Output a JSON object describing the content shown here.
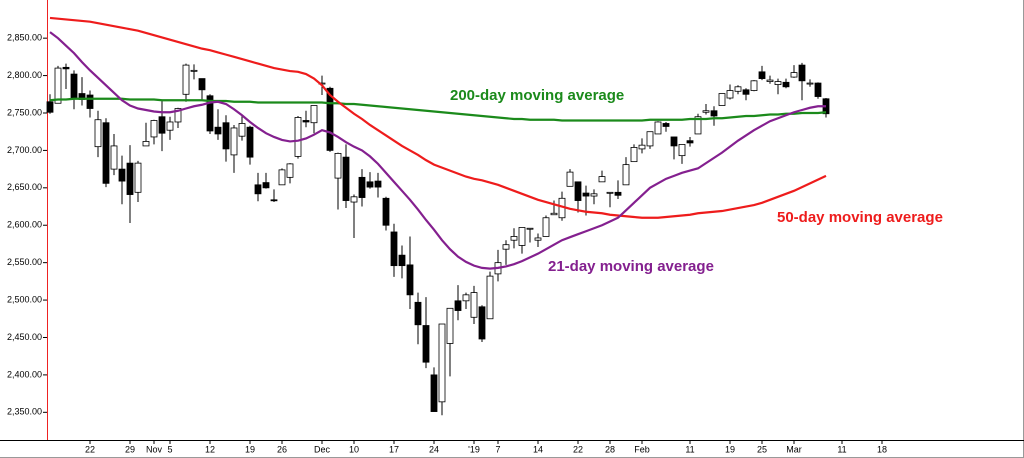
{
  "chart_data": {
    "type": "candlestick",
    "categories": [
      null,
      null,
      null,
      null,
      null,
      "22",
      null,
      null,
      null,
      null,
      "29",
      null,
      null,
      "Nov",
      null,
      "5",
      null,
      null,
      null,
      null,
      "12",
      null,
      null,
      null,
      null,
      "19",
      null,
      null,
      null,
      "26",
      null,
      null,
      null,
      null,
      "Dec",
      null,
      null,
      null,
      "10",
      null,
      null,
      null,
      null,
      "17",
      null,
      null,
      null,
      null,
      "24",
      null,
      null,
      null,
      null,
      "'19",
      null,
      null,
      "7",
      null,
      null,
      null,
      null,
      "14",
      null,
      null,
      null,
      null,
      "22",
      null,
      null,
      null,
      "28",
      null,
      null,
      null,
      "Feb",
      null,
      null,
      null,
      null,
      null,
      "11",
      null,
      null,
      null,
      null,
      "19",
      null,
      null,
      null,
      "25",
      null,
      null,
      null,
      "Mar",
      null,
      null,
      null,
      null,
      null,
      "11",
      null,
      null,
      null,
      null,
      "18"
    ],
    "ohlc": {
      "open": [
        2765,
        2763,
        2811,
        2802,
        2776,
        2774,
        2705,
        2737,
        2675,
        2675,
        2683,
        2644,
        2706,
        2718,
        2745,
        2727,
        2738,
        2775,
        2807,
        2796,
        2773,
        2731,
        2737,
        2694,
        2719,
        2731,
        2654,
        2657,
        2634,
        2654,
        2664,
        2692,
        2740,
        2737,
        2790,
        2783,
        2663,
        2691,
        2631,
        2664,
        2658,
        2659,
        2636,
        2591,
        2560,
        2547,
        2497,
        2466,
        2400,
        2364,
        2442,
        2499,
        2499,
        2477,
        2491,
        2475,
        2535,
        2568,
        2580,
        2573,
        2595,
        2580,
        2585,
        2614,
        2610,
        2652,
        2658,
        2643,
        2639,
        2658,
        2644,
        2644,
        2654,
        2685,
        2702,
        2706,
        2722,
        2736,
        2718,
        2693,
        2713,
        2722,
        2751,
        2753,
        2760,
        2770,
        2779,
        2781,
        2780,
        2805,
        2792,
        2788,
        2791,
        2798,
        2814,
        2790,
        2790,
        2769,
        null,
        null,
        null,
        null,
        null,
        null,
        null
      ],
      "high": [
        2775,
        2813,
        2816,
        2807,
        2798,
        2780,
        2753,
        2743,
        2722,
        2693,
        2707,
        2686,
        2737,
        2741,
        2767,
        2745,
        2757,
        2816,
        2815,
        2796,
        2775,
        2755,
        2747,
        2734,
        2747,
        2733,
        2670,
        2670,
        2648,
        2676,
        2683,
        2746,
        2753,
        2760,
        2800,
        2785,
        2697,
        2708,
        2641,
        2675,
        2671,
        2670,
        2638,
        2602,
        2573,
        2585,
        2510,
        2504,
        2410,
        2467,
        2489,
        2520,
        2510,
        2519,
        2493,
        2538,
        2567,
        2580,
        2596,
        2597,
        2596,
        2589,
        2613,
        2633,
        2645,
        2675,
        2658,
        2653,
        2648,
        2673,
        2644,
        2660,
        2691,
        2708,
        2716,
        2725,
        2739,
        2738,
        2718,
        2708,
        2718,
        2749,
        2762,
        2759,
        2776,
        2788,
        2787,
        2783,
        2794,
        2813,
        2800,
        2796,
        2796,
        2814,
        2817,
        2795,
        2791,
        2770,
        null,
        null,
        null,
        null,
        null,
        null,
        null
      ],
      "low": [
        2749,
        2763,
        2782,
        2755,
        2760,
        2744,
        2691,
        2651,
        2667,
        2628,
        2603,
        2631,
        2706,
        2708,
        2699,
        2714,
        2730,
        2765,
        2795,
        2766,
        2722,
        2714,
        2685,
        2670,
        2713,
        2681,
        2632,
        2649,
        2631,
        2654,
        2656,
        2689,
        2731,
        2723,
        2774,
        2698,
        2621,
        2623,
        2583,
        2625,
        2649,
        2637,
        2593,
        2531,
        2529,
        2488,
        2441,
        2409,
        2351,
        2346,
        2398,
        2473,
        2488,
        2468,
        2444,
        2475,
        2525,
        2547,
        2569,
        2562,
        2577,
        2571,
        2585,
        2614,
        2606,
        2652,
        2617,
        2613,
        2628,
        2658,
        2624,
        2635,
        2654,
        2685,
        2696,
        2702,
        2722,
        2725,
        2688,
        2682,
        2705,
        2722,
        2748,
        2733,
        2760,
        2768,
        2775,
        2767,
        2779,
        2794,
        2789,
        2775,
        2783,
        2797,
        2767,
        2785,
        2769,
        2744,
        null,
        null,
        null,
        null,
        null,
        null,
        null
      ],
      "close": [
        2751,
        2810,
        2809,
        2769,
        2768,
        2756,
        2741,
        2656,
        2706,
        2659,
        2641,
        2683,
        2712,
        2740,
        2723,
        2738,
        2756,
        2814,
        2807,
        2781,
        2726,
        2722,
        2702,
        2730,
        2736,
        2691,
        2642,
        2650,
        2633,
        2674,
        2682,
        2744,
        2738,
        2760,
        2790,
        2700,
        2696,
        2633,
        2638,
        2637,
        2651,
        2651,
        2600,
        2546,
        2546,
        2507,
        2467,
        2417,
        2351,
        2468,
        2489,
        2486,
        2507,
        2510,
        2448,
        2532,
        2550,
        2574,
        2585,
        2597,
        2596,
        2583,
        2610,
        2616,
        2636,
        2671,
        2633,
        2639,
        2642,
        2665,
        2644,
        2640,
        2681,
        2704,
        2707,
        2725,
        2738,
        2732,
        2706,
        2708,
        2710,
        2745,
        2753,
        2746,
        2776,
        2780,
        2785,
        2775,
        2793,
        2796,
        2794,
        2792,
        2785,
        2804,
        2793,
        2790,
        2772,
        2749,
        null,
        null,
        null,
        null,
        null,
        null,
        null
      ]
    },
    "lines": [
      {
        "name": "200-day moving average",
        "color": "#1b8a1b",
        "values": [
          2767,
          2768,
          2768,
          2769,
          2769,
          2769,
          2769,
          2769,
          2769,
          2769,
          2768,
          2768,
          2768,
          2768,
          2767,
          2767,
          2767,
          2767,
          2767,
          2767,
          2766,
          2766,
          2766,
          2765,
          2765,
          2765,
          2764,
          2764,
          2764,
          2764,
          2764,
          2764,
          2764,
          2764,
          2764,
          2763,
          2763,
          2762,
          2762,
          2761,
          2760,
          2759,
          2758,
          2757,
          2756,
          2755,
          2754,
          2753,
          2752,
          2751,
          2750,
          2749,
          2748,
          2747,
          2746,
          2745,
          2744,
          2743,
          2742,
          2742,
          2741,
          2741,
          2741,
          2741,
          2740,
          2740,
          2740,
          2740,
          2740,
          2740,
          2740,
          2740,
          2740,
          2740,
          2740,
          2741,
          2741,
          2741,
          2741,
          2741,
          2742,
          2742,
          2742,
          2743,
          2743,
          2744,
          2745,
          2746,
          2746,
          2747,
          2748,
          2748,
          2749,
          2749,
          2750,
          2750,
          2750,
          2751,
          null,
          null,
          null,
          null,
          null,
          null,
          null
        ]
      },
      {
        "name": "50-day moving average",
        "color": "#ee1c1c",
        "values": [
          2877,
          2876,
          2875,
          2874,
          2873,
          2872,
          2870,
          2868,
          2866,
          2864,
          2862,
          2860,
          2857,
          2854,
          2851,
          2848,
          2845,
          2842,
          2839,
          2836,
          2834,
          2831,
          2828,
          2825,
          2822,
          2819,
          2816,
          2813,
          2810,
          2808,
          2806,
          2805,
          2802,
          2796,
          2787,
          2774,
          2765,
          2757,
          2749,
          2742,
          2734,
          2727,
          2720,
          2713,
          2706,
          2700,
          2694,
          2687,
          2681,
          2677,
          2673,
          2669,
          2665,
          2662,
          2660,
          2657,
          2654,
          2650,
          2646,
          2642,
          2638,
          2634,
          2631,
          2628,
          2625,
          2622,
          2620,
          2618,
          2617,
          2616,
          2614,
          2613,
          2612,
          2611,
          2610,
          2610,
          2610,
          2611,
          2612,
          2613,
          2614,
          2616,
          2617,
          2618,
          2619,
          2621,
          2623,
          2625,
          2627,
          2630,
          2634,
          2638,
          2642,
          2646,
          2651,
          2656,
          2661,
          2666,
          null,
          null,
          null,
          null,
          null,
          null,
          null
        ]
      },
      {
        "name": "21-day moving average",
        "color": "#84208f",
        "values": [
          2858,
          2850,
          2840,
          2830,
          2818,
          2807,
          2797,
          2787,
          2777,
          2767,
          2760,
          2756,
          2754,
          2752,
          2751,
          2751,
          2753,
          2756,
          2759,
          2761,
          2764,
          2765,
          2762,
          2755,
          2747,
          2738,
          2730,
          2723,
          2718,
          2714,
          2712,
          2713,
          2716,
          2721,
          2727,
          2724,
          2718,
          2711,
          2705,
          2700,
          2692,
          2682,
          2670,
          2658,
          2646,
          2634,
          2621,
          2607,
          2594,
          2580,
          2568,
          2558,
          2551,
          2546,
          2543,
          2542,
          2543,
          2545,
          2548,
          2552,
          2557,
          2562,
          2568,
          2574,
          2580,
          2584,
          2588,
          2592,
          2596,
          2600,
          2605,
          2610,
          2620,
          2630,
          2640,
          2650,
          2656,
          2662,
          2666,
          2670,
          2673,
          2676,
          2683,
          2690,
          2697,
          2705,
          2713,
          2720,
          2727,
          2733,
          2739,
          2743,
          2747,
          2751,
          2754,
          2757,
          2759,
          2759,
          null,
          null,
          null,
          null,
          null,
          null,
          null
        ]
      }
    ],
    "ylim": [
      2313,
      2901
    ],
    "yticks": [
      {
        "value": 2350,
        "label": "2,350.00"
      },
      {
        "value": 2400,
        "label": "2,400.00"
      },
      {
        "value": 2450,
        "label": "2,450.00"
      },
      {
        "value": 2500,
        "label": "2,500.00"
      },
      {
        "value": 2550,
        "label": "2,550.00"
      },
      {
        "value": 2600,
        "label": "2,600.00"
      },
      {
        "value": 2650,
        "label": "2,650.00"
      },
      {
        "value": 2700,
        "label": "2,700.00"
      },
      {
        "value": 2750,
        "label": "2,750.00"
      },
      {
        "value": 2800,
        "label": "2,800.00"
      },
      {
        "value": 2850,
        "label": "2,850.00"
      }
    ],
    "grid": false
  }
}
